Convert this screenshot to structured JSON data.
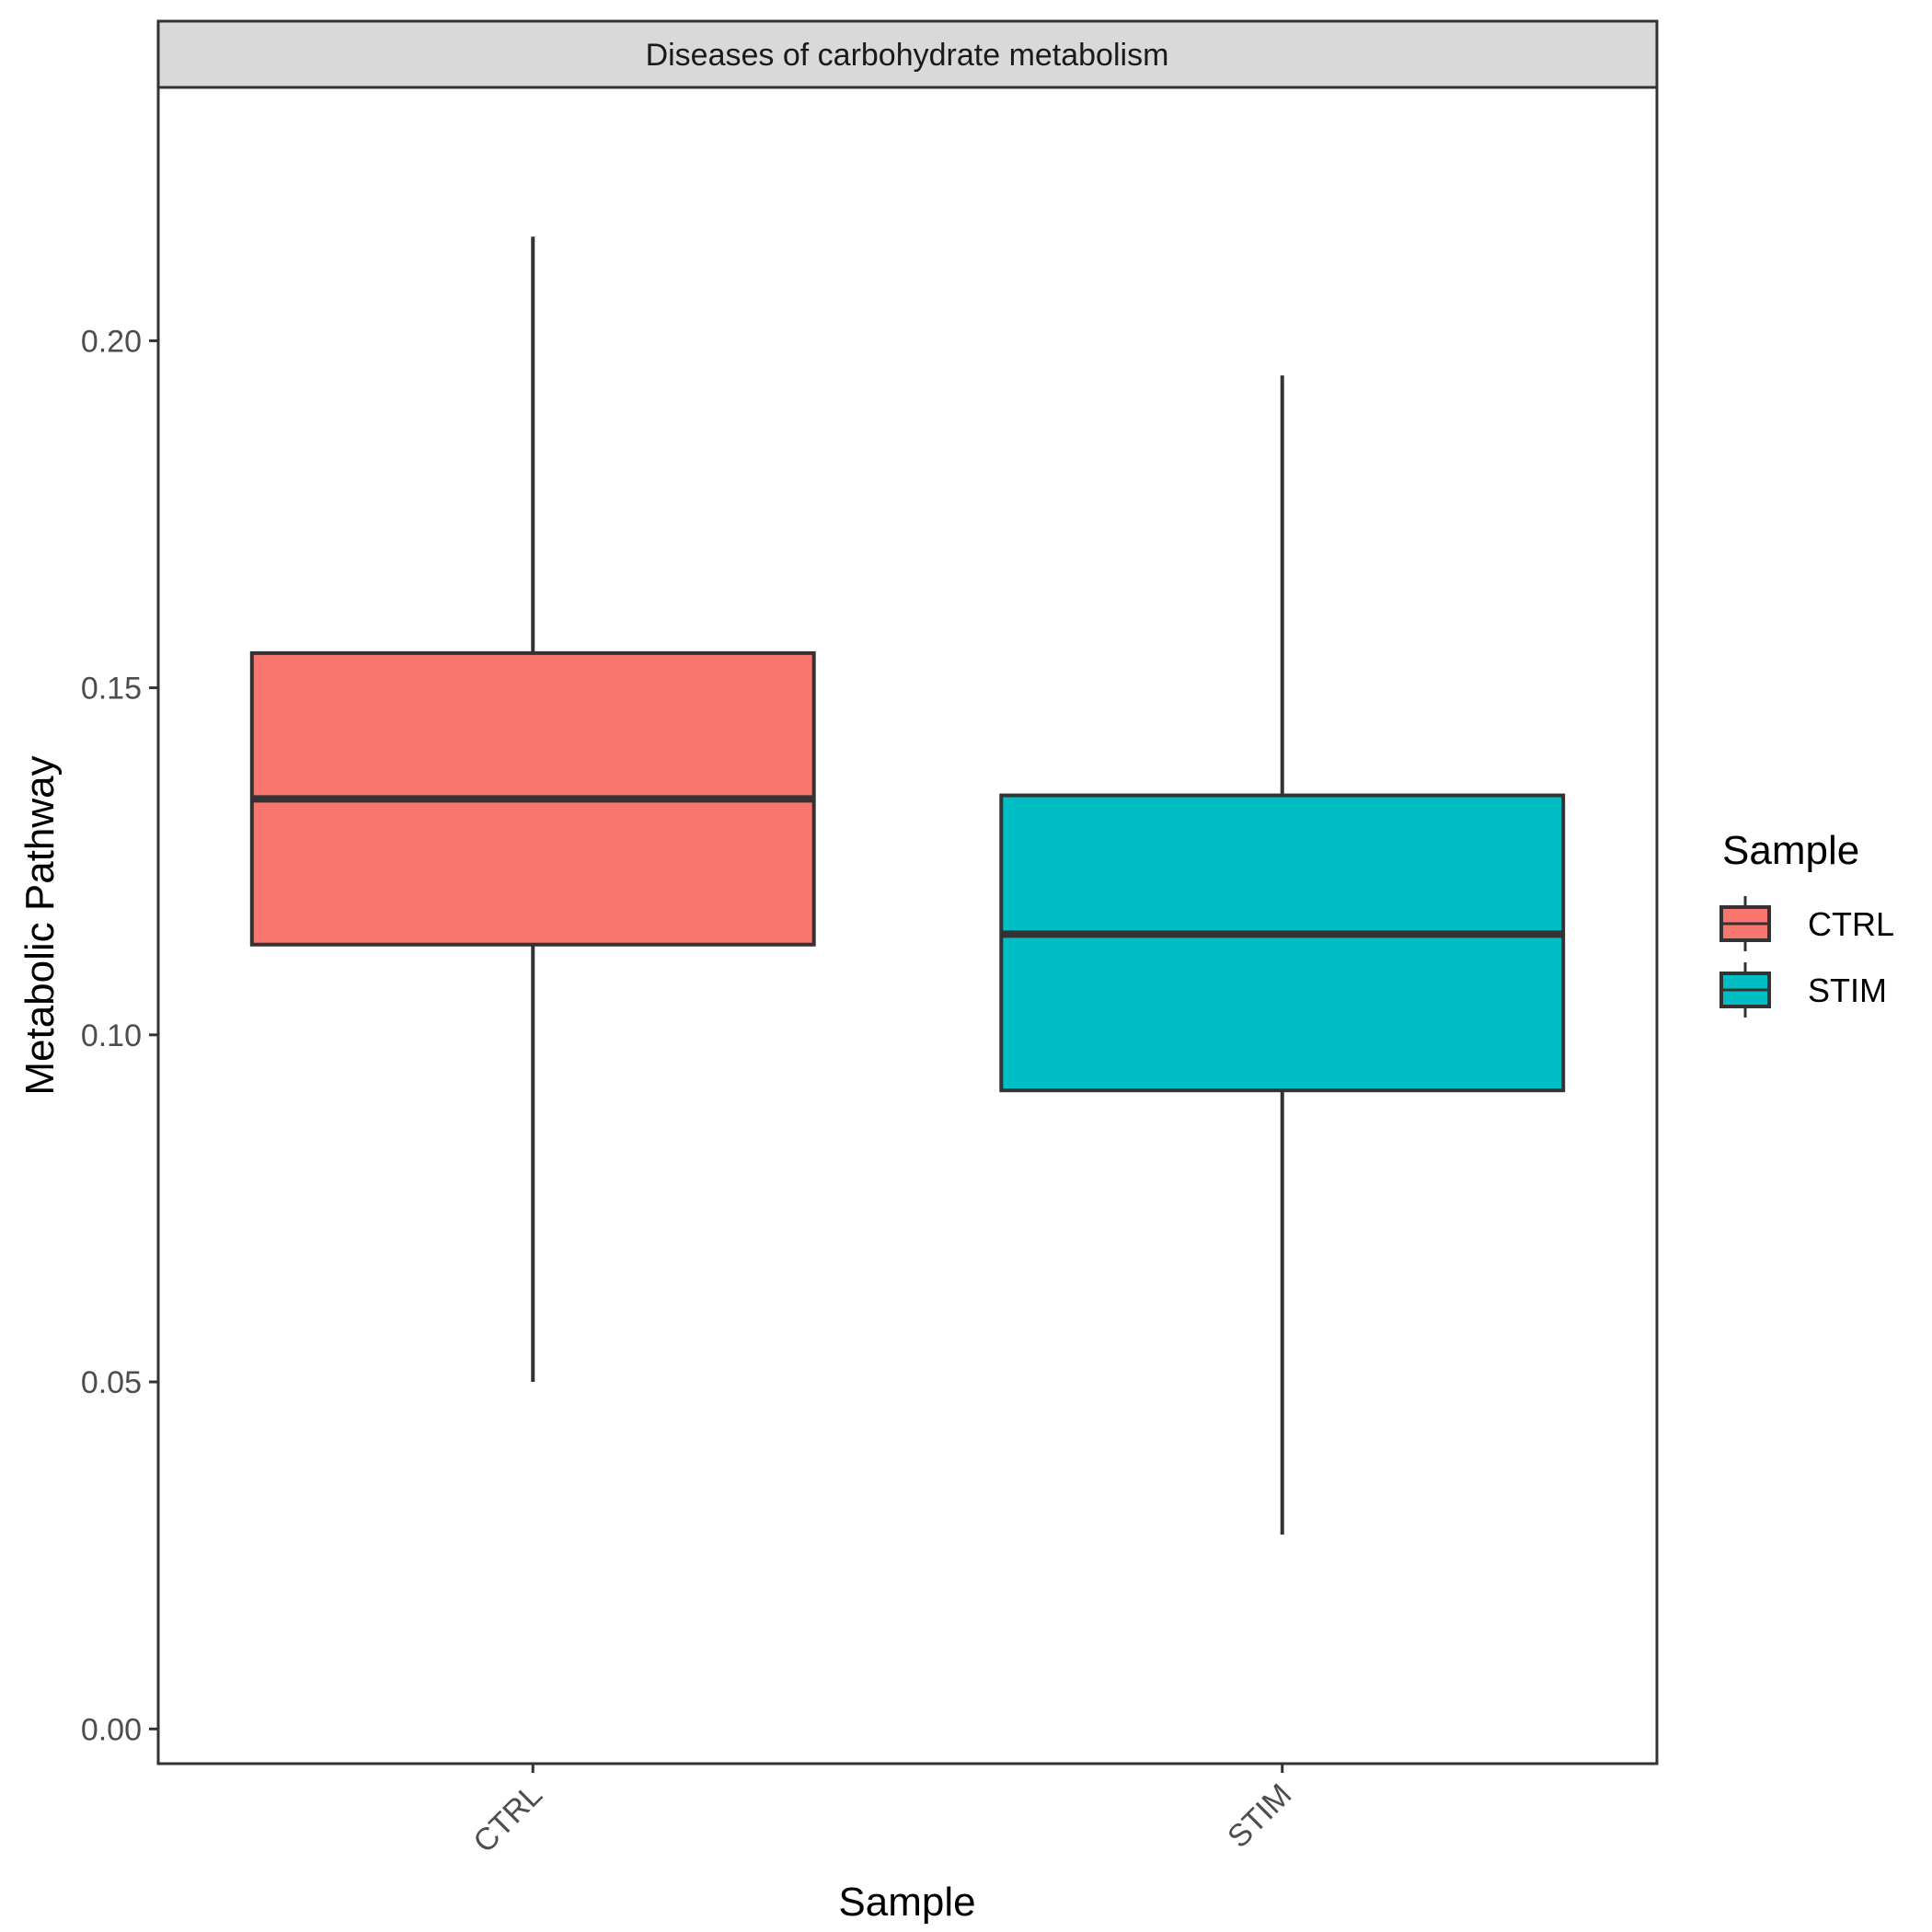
{
  "chart_data": {
    "type": "boxplot",
    "facet_title": "Diseases of carbohydrate metabolism",
    "xlabel": "Sample",
    "ylabel": "Metabolic Pathway",
    "ylim": [
      -0.005,
      0.2365
    ],
    "yticks": [
      0.0,
      0.05,
      0.1,
      0.15,
      0.2
    ],
    "ytick_labels": [
      "0.00",
      "0.05",
      "0.10",
      "0.15",
      "0.20"
    ],
    "categories": [
      "CTRL",
      "STIM"
    ],
    "boxes": [
      {
        "category": "CTRL",
        "min": 0.05,
        "q1": 0.113,
        "median": 0.134,
        "q3": 0.155,
        "max": 0.215,
        "color": "#F8766D"
      },
      {
        "category": "STIM",
        "min": 0.028,
        "q1": 0.092,
        "median": 0.1145,
        "q3": 0.1345,
        "max": 0.195,
        "color": "#00BFC4"
      }
    ],
    "legend": {
      "title": "Sample",
      "position": "right",
      "entries": [
        {
          "label": "CTRL",
          "color": "#F8766D"
        },
        {
          "label": "STIM",
          "color": "#00BFC4"
        }
      ]
    },
    "grid": false
  }
}
